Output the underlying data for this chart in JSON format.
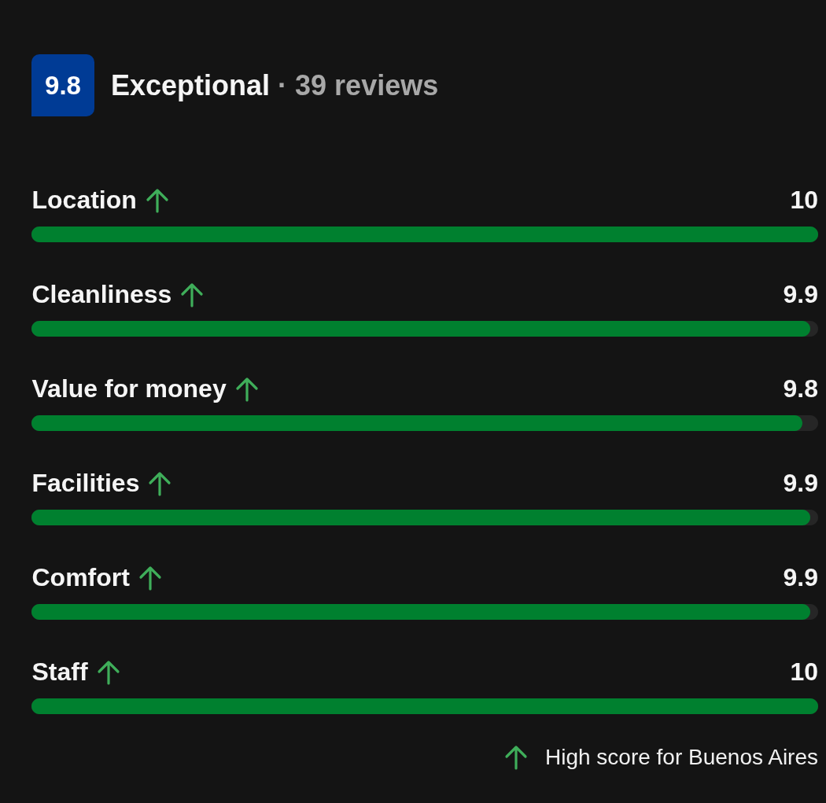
{
  "chart_data": {
    "type": "bar",
    "orientation": "horizontal",
    "title": "Exceptional",
    "subtitle": "· 39 reviews",
    "annotations": [
      "9.8",
      "High score for Buenos Aires"
    ],
    "categories": [
      "Location",
      "Cleanliness",
      "Value for money",
      "Facilities",
      "Comfort",
      "Staff"
    ],
    "values": [
      10,
      9.9,
      9.8,
      9.9,
      9.9,
      10
    ],
    "color": "#00802f",
    "xlim": [
      0,
      10
    ],
    "tick_labels": "y",
    "data_labels": true
  }
}
